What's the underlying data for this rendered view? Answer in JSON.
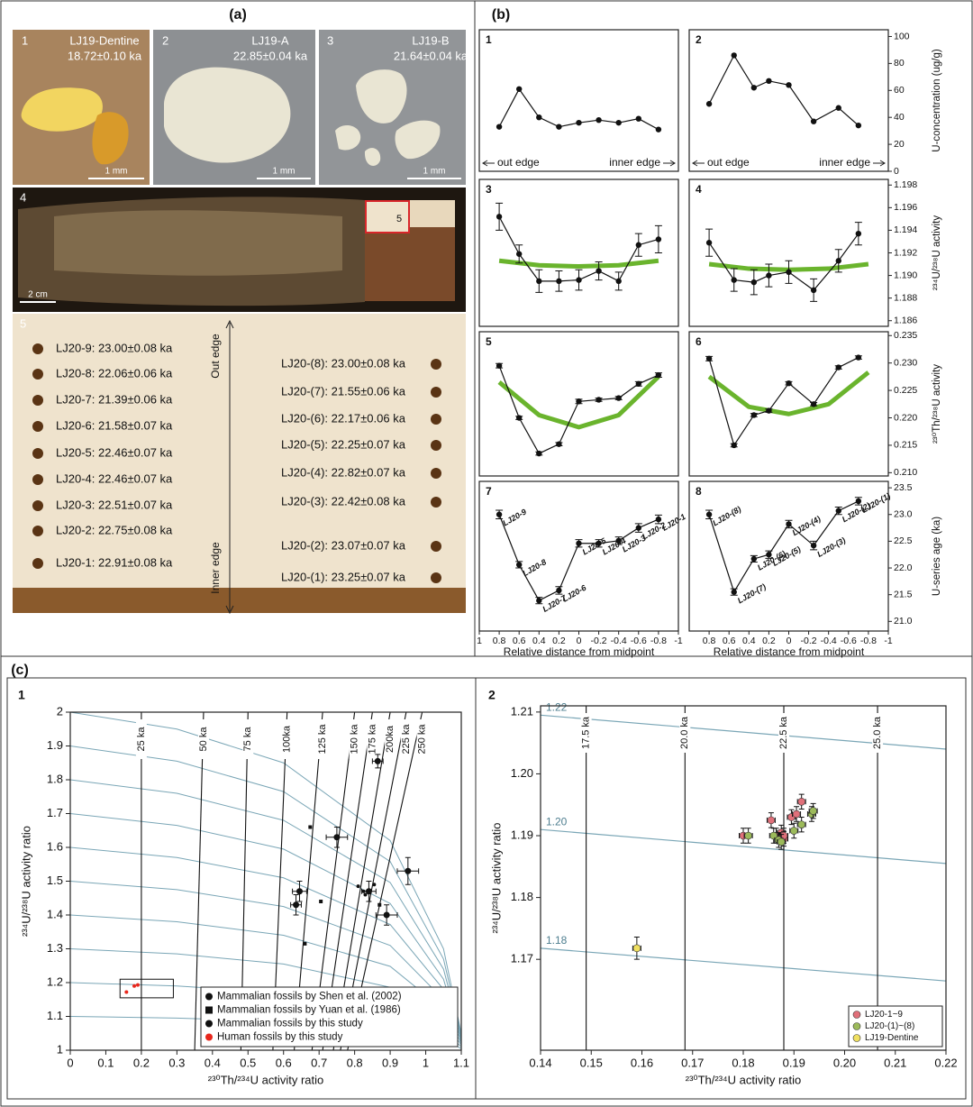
{
  "figure": {
    "a": {
      "label": "(a)",
      "photos": [
        {
          "num": "1",
          "name": "LJ19-Dentine",
          "age": "18.72±0.10 ka",
          "scale": "1 mm"
        },
        {
          "num": "2",
          "name": "LJ19-A",
          "age": "22.85±0.04 ka",
          "scale": "1 mm"
        },
        {
          "num": "3",
          "name": "LJ19-B",
          "age": "21.64±0.04 ka",
          "scale": "1 mm"
        }
      ],
      "photo4": {
        "num": "4",
        "inset": "5",
        "scale": "2 cm"
      },
      "photo5": {
        "num": "5",
        "left": [
          "LJ20-9: 23.00±0.08 ka",
          "LJ20-8: 22.06±0.06 ka",
          "LJ20-7: 21.39±0.06 ka",
          "LJ20-6: 21.58±0.07 ka",
          "LJ20-5: 22.46±0.07 ka",
          "LJ20-4: 22.46±0.07 ka",
          "LJ20-3: 22.51±0.07 ka",
          "LJ20-2: 22.75±0.08 ka",
          "LJ20-1: 22.91±0.08 ka"
        ],
        "right": [
          "LJ20-(8): 23.00±0.08 ka",
          "LJ20-(7): 21.55±0.06 ka",
          "LJ20-(6): 22.17±0.06 ka",
          "LJ20-(5): 22.25±0.07 ka",
          "LJ20-(4): 22.82±0.07 ka",
          "LJ20-(3): 22.42±0.08 ka",
          "LJ20-(2): 23.07±0.07 ka",
          "LJ20-(1): 23.25±0.07 ka"
        ],
        "out_edge": "Out edge",
        "inner_edge": "Inner edge"
      }
    },
    "b_label": "(b)",
    "c_label": "(c)"
  },
  "chart_data": [
    {
      "type": "line",
      "panel": "1",
      "color": "#111111",
      "x": [
        0.8,
        0.6,
        0.4,
        0.2,
        0,
        -0.2,
        -0.4,
        -0.6,
        -0.8
      ],
      "values": [
        33,
        61,
        40,
        33,
        36,
        38,
        36,
        39,
        31
      ],
      "xlim": [
        1,
        -1
      ],
      "ylim": [
        0,
        105
      ],
      "annotations": [
        "out edge",
        "inner edge"
      ]
    },
    {
      "type": "line",
      "panel": "2",
      "color": "#111111",
      "x": [
        0.8,
        0.55,
        0.35,
        0.2,
        0,
        -0.25,
        -0.5,
        -0.7
      ],
      "values": [
        50,
        86,
        62,
        67,
        64,
        37,
        47,
        34
      ],
      "xlim": [
        1,
        -1
      ],
      "ylim": [
        0,
        105
      ],
      "yticks": [
        0,
        20,
        40,
        60,
        80,
        100
      ],
      "ylabel": "U-concentration (ug/g)",
      "annotations": [
        "out edge",
        "inner edge"
      ]
    },
    {
      "type": "line",
      "panel": "3",
      "color": "#111111",
      "fit_color": "#6ab42d",
      "x": [
        0.8,
        0.6,
        0.4,
        0.2,
        0,
        -0.2,
        -0.4,
        -0.6,
        -0.8
      ],
      "values": [
        1.1952,
        1.1919,
        1.1895,
        1.1895,
        1.1896,
        1.1904,
        1.1895,
        1.1927,
        1.1932
      ],
      "errors": [
        0.0012,
        0.0008,
        0.001,
        0.0009,
        0.0009,
        0.0008,
        0.0008,
        0.001,
        0.0012
      ],
      "fit": {
        "x": [
          0.8,
          0.4,
          0,
          -0.4,
          -0.8
        ],
        "values": [
          1.1913,
          1.1909,
          1.1908,
          1.1909,
          1.1913
        ]
      },
      "xlim": [
        1,
        -1
      ],
      "ylim": [
        1.1855,
        1.1985
      ]
    },
    {
      "type": "line",
      "panel": "4",
      "color": "#111111",
      "fit_color": "#6ab42d",
      "x": [
        0.8,
        0.55,
        0.35,
        0.2,
        0,
        -0.25,
        -0.5,
        -0.7
      ],
      "values": [
        1.1929,
        1.1896,
        1.1894,
        1.19,
        1.1903,
        1.1887,
        1.1913,
        1.1937
      ],
      "errors": [
        0.0012,
        0.001,
        0.0011,
        0.001,
        0.001,
        0.001,
        0.001,
        0.001
      ],
      "fit": {
        "x": [
          0.8,
          0.4,
          0,
          -0.4,
          -0.8
        ],
        "values": [
          1.191,
          1.1906,
          1.1905,
          1.1906,
          1.191
        ]
      },
      "xlim": [
        1,
        -1
      ],
      "ylim": [
        1.1855,
        1.1985
      ],
      "yticks": [
        1.186,
        1.188,
        {
          "value": 1.19,
          "label": "1.190"
        },
        1.192,
        1.194,
        1.196,
        1.198
      ],
      "ylabel": "²³⁴U/²³⁸U activity"
    },
    {
      "type": "line",
      "panel": "5",
      "color": "#111111",
      "fit_color": "#6ab42d",
      "x": [
        0.8,
        0.6,
        0.4,
        0.2,
        0,
        -0.2,
        -0.4,
        -0.6,
        -0.8
      ],
      "values": [
        0.2295,
        0.22,
        0.2135,
        0.2152,
        0.223,
        0.2233,
        0.2236,
        0.2262,
        0.2278
      ],
      "errors": [
        0.0004,
        0.0003,
        0.0003,
        0.0003,
        0.0004,
        0.0003,
        0.0003,
        0.0004,
        0.0004
      ],
      "fit": {
        "x": [
          0.8,
          0.4,
          0,
          -0.4,
          -0.8
        ],
        "values": [
          0.2265,
          0.2205,
          0.2183,
          0.2205,
          0.2275
        ]
      },
      "xlim": [
        1,
        -1
      ],
      "ylim": [
        0.2094,
        0.2357
      ]
    },
    {
      "type": "line",
      "panel": "6",
      "color": "#111111",
      "fit_color": "#6ab42d",
      "x": [
        0.8,
        0.55,
        0.35,
        0.2,
        0,
        -0.25,
        -0.5,
        -0.7
      ],
      "values": [
        0.2308,
        0.215,
        0.2205,
        0.2213,
        0.2263,
        0.2225,
        0.2292,
        0.231
      ],
      "errors": [
        0.0004,
        0.0003,
        0.0003,
        0.0003,
        0.0003,
        0.0003,
        0.0003,
        0.0003
      ],
      "fit": {
        "x": [
          0.8,
          0.4,
          0,
          -0.4,
          -0.8
        ],
        "values": [
          0.2275,
          0.222,
          0.2207,
          0.2225,
          0.2283
        ]
      },
      "xlim": [
        1,
        -1
      ],
      "ylim": [
        0.2094,
        0.2357
      ],
      "yticks": [
        {
          "value": 0.21,
          "label": "0.210"
        },
        0.215,
        {
          "value": 0.22,
          "label": "0.220"
        },
        0.225,
        {
          "value": 0.23,
          "label": "0.230"
        },
        0.235
      ],
      "ylabel": "²³⁰Th/²³⁸U activity"
    },
    {
      "type": "line",
      "panel": "7",
      "color": "#111111",
      "x": [
        0.8,
        0.6,
        0.4,
        0.2,
        0,
        -0.2,
        -0.4,
        -0.6,
        -0.8
      ],
      "values": [
        23.0,
        22.06,
        21.39,
        21.58,
        22.46,
        22.46,
        22.51,
        22.75,
        22.91
      ],
      "errors": [
        0.08,
        0.06,
        0.06,
        0.07,
        0.07,
        0.07,
        0.07,
        0.08,
        0.08
      ],
      "point_labels": [
        "LJ20-9",
        "LJ20-8",
        "LJ20-7",
        "LJ20-6",
        "LJ20-5",
        "LJ20-4",
        "LJ20-3",
        "LJ20-2",
        "LJ20-1"
      ],
      "xlim": [
        1,
        -1
      ],
      "ylim": [
        20.82,
        23.62
      ],
      "xticks": [
        1,
        0.8,
        0.6,
        0.4,
        0.2,
        0,
        -0.2,
        -0.4,
        -0.6,
        -0.8,
        -1
      ],
      "xlabel": "Relative distance from midpoint"
    },
    {
      "type": "line",
      "panel": "8",
      "color": "#111111",
      "x": [
        0.8,
        0.55,
        0.35,
        0.2,
        0,
        -0.25,
        -0.5,
        -0.7
      ],
      "values": [
        23.0,
        21.55,
        22.17,
        22.25,
        22.82,
        22.42,
        23.07,
        23.25
      ],
      "errors": [
        0.08,
        0.06,
        0.06,
        0.07,
        0.07,
        0.08,
        0.07,
        0.07
      ],
      "point_labels": [
        "LJ20-(8)",
        "LJ20-(7)",
        "LJ20-(6)",
        "LJ20-(5)",
        "LJ20-(4)",
        "LJ20-(3)",
        "LJ20-(2)",
        "LJ20-(1)"
      ],
      "xlim": [
        1,
        -1
      ],
      "ylim": [
        20.82,
        23.62
      ],
      "xticks": [
        0.8,
        0.6,
        0.4,
        0.2,
        0,
        -0.2,
        -0.4,
        -0.6,
        -0.8,
        -1
      ],
      "yticks": [
        {
          "value": 21,
          "label": "21.0"
        },
        21.5,
        {
          "value": 22,
          "label": "22.0"
        },
        22.5,
        {
          "value": 23,
          "label": "23.0"
        },
        23.5
      ],
      "ylabel": "U-series age (ka)",
      "xlabel": "Relative distance from midpoint"
    },
    {
      "type": "scatter",
      "panel": "1",
      "xlabel": "²³⁰Th/²³⁴U activity ratio",
      "ylabel": "²³⁴U/²³⁸U activity ratio",
      "xlim": [
        0,
        1.1
      ],
      "ylim": [
        1,
        2
      ],
      "xticks": [
        0,
        0.1,
        0.2,
        0.3,
        0.4,
        0.5,
        0.6,
        0.7,
        0.8,
        0.9,
        1,
        1.1
      ],
      "yticks": [
        1,
        1.1,
        1.2,
        1.3,
        1.4,
        1.5,
        1.6,
        1.7,
        1.8,
        1.9,
        2
      ],
      "curve_color": "#7aa6b6",
      "curves": {
        "x": [
          0,
          0.3,
          0.6,
          0.9,
          1.05,
          1.1
        ],
        "lines": [
          [
            2.0,
            1.95,
            1.85,
            1.62,
            1.3,
            1.05
          ],
          [
            1.9,
            1.855,
            1.765,
            1.558,
            1.27,
            1.045
          ],
          [
            1.8,
            1.76,
            1.68,
            1.496,
            1.24,
            1.04
          ],
          [
            1.7,
            1.665,
            1.595,
            1.434,
            1.21,
            1.035
          ],
          [
            1.6,
            1.57,
            1.51,
            1.372,
            1.18,
            1.03
          ],
          [
            1.5,
            1.475,
            1.425,
            1.31,
            1.15,
            1.025
          ],
          [
            1.4,
            1.38,
            1.34,
            1.248,
            1.12,
            1.02
          ],
          [
            1.3,
            1.285,
            1.255,
            1.186,
            1.09,
            1.015
          ],
          [
            1.2,
            1.19,
            1.17,
            1.124,
            1.06,
            1.01
          ],
          [
            1.1,
            1.095,
            1.085,
            1.062,
            1.03,
            1.005
          ]
        ]
      },
      "isochrons": [
        {
          "label": "25 ka",
          "x": [
            0.2,
            0.2
          ]
        },
        {
          "label": "50 ka",
          "x": [
            0.35,
            0.375
          ]
        },
        {
          "label": "75 ka",
          "x": [
            0.48,
            0.5
          ]
        },
        {
          "label": "100ka",
          "x": [
            0.57,
            0.61
          ]
        },
        {
          "label": "125 ka",
          "x": [
            0.63,
            0.71
          ]
        },
        {
          "label": "150 ka",
          "x": [
            0.68,
            0.8
          ]
        },
        {
          "label": "175 ka",
          "x": [
            0.71,
            0.85
          ]
        },
        {
          "label": "200ka",
          "x": [
            0.74,
            0.9
          ]
        },
        {
          "label": "225 ka",
          "x": [
            0.76,
            0.945
          ]
        },
        {
          "label": "250 ka",
          "x": [
            0.78,
            0.99
          ]
        }
      ],
      "inset_box": {
        "x": [
          0.14,
          0.29
        ],
        "y": [
          1.155,
          1.21
        ]
      },
      "legend": "lower right",
      "series": [
        {
          "name": "Mammalian fossils by Shen et al. (2002)",
          "color": "#111111",
          "marker": "circle",
          "x": [
            0.635,
            0.645,
            0.84,
            0.75,
            0.95,
            0.89,
            0.865
          ],
          "values": [
            1.43,
            1.47,
            1.47,
            1.63,
            1.53,
            1.4,
            1.855
          ],
          "xerr": [
            0.015,
            0.02,
            0.02,
            0.03,
            0.03,
            0.03,
            0.015
          ],
          "yerr": [
            0.03,
            0.03,
            0.03,
            0.03,
            0.04,
            0.03,
            0.02
          ]
        },
        {
          "name": "Mammalian fossils by Yuan et al. (1986)",
          "color": "#111111",
          "marker": "square",
          "x": [
            0.675,
            0.705,
            0.66,
            0.87
          ],
          "values": [
            1.66,
            1.44,
            1.315,
            1.43
          ]
        },
        {
          "name": "Mammalian fossils by this study",
          "color": "#111111",
          "marker": "circle",
          "x": [
            0.81,
            0.825,
            0.855,
            0.83
          ],
          "values": [
            1.485,
            1.47,
            1.49,
            1.46
          ]
        },
        {
          "name": "Human fossils by this study",
          "color": "#e8271c",
          "marker": "circle",
          "x": [
            0.158,
            0.18,
            0.19
          ],
          "values": [
            1.172,
            1.19,
            1.193
          ]
        }
      ]
    },
    {
      "type": "scatter",
      "panel": "2",
      "xlabel": "²³⁰Th/²³⁴U activity ratio",
      "ylabel": "²³⁴U/²³⁸U activity ratio",
      "xlim": [
        0.14,
        0.22
      ],
      "ylim": [
        1.1553,
        1.211
      ],
      "xticks": [
        0.14,
        0.15,
        0.16,
        0.17,
        0.18,
        0.19,
        {
          "value": 0.2,
          "label": "0.20"
        },
        0.21,
        0.22
      ],
      "yticks": [
        1.17,
        1.18,
        1.19,
        {
          "value": 1.2,
          "label": "1.20"
        },
        1.21
      ],
      "curve_color": "#7aa6b6",
      "initial_lines": [
        {
          "label": "1.22",
          "x": [
            0.14,
            0.22
          ],
          "y": [
            1.2095,
            1.204
          ]
        },
        {
          "label": "1.20",
          "x": [
            0.14,
            0.22
          ],
          "y": [
            1.191,
            1.1855
          ]
        },
        {
          "label": "1.18",
          "x": [
            0.14,
            0.22
          ],
          "y": [
            1.1718,
            1.1665
          ]
        }
      ],
      "isochrons": [
        {
          "label": "17.5 ka",
          "x": [
            0.149,
            0.149
          ]
        },
        {
          "label": "20.0 ka",
          "x": [
            0.1685,
            0.1685
          ]
        },
        {
          "label": "22.5 ka",
          "x": [
            0.188,
            0.188
          ]
        },
        {
          "label": "25.0 ka",
          "x": [
            0.2065,
            0.2065
          ]
        }
      ],
      "legend": "lower right",
      "series": [
        {
          "name": "LJ20-1~9",
          "color": "#e0707a",
          "marker": "circle",
          "x": [
            0.18,
            0.1855,
            0.1875,
            0.188,
            0.1895,
            0.1905,
            0.1915,
            0.188,
            0.1865
          ],
          "values": [
            1.19,
            1.1925,
            1.1905,
            1.1895,
            1.193,
            1.1935,
            1.1955,
            1.19,
            1.19
          ],
          "xerr": [
            0.0008,
            0.0008,
            0.0008,
            0.0008,
            0.0008,
            0.0008,
            0.0008,
            0.0008,
            0.0008
          ],
          "yerr": [
            0.0012,
            0.0012,
            0.0012,
            0.0012,
            0.0012,
            0.0012,
            0.0012,
            0.0012,
            0.0012
          ]
        },
        {
          "name": "LJ20-(1)~(8)",
          "color": "#9cba5a",
          "marker": "circle",
          "x": [
            0.181,
            0.186,
            0.187,
            0.1875,
            0.19,
            0.1915,
            0.1935,
            0.1938
          ],
          "values": [
            1.19,
            1.19,
            1.1893,
            1.189,
            1.1908,
            1.1918,
            1.1935,
            1.194
          ],
          "xerr": [
            0.0008,
            0.0008,
            0.0008,
            0.0008,
            0.0008,
            0.0008,
            0.0008,
            0.0008
          ],
          "yerr": [
            0.0012,
            0.0012,
            0.0012,
            0.0012,
            0.0012,
            0.0012,
            0.0012,
            0.0012
          ]
        },
        {
          "name": "LJ19-Dentine",
          "color": "#f0e060",
          "marker": "circle",
          "x": [
            0.159
          ],
          "values": [
            1.1718
          ],
          "xerr": [
            0.0008
          ],
          "yerr": [
            0.0018
          ]
        }
      ]
    }
  ]
}
